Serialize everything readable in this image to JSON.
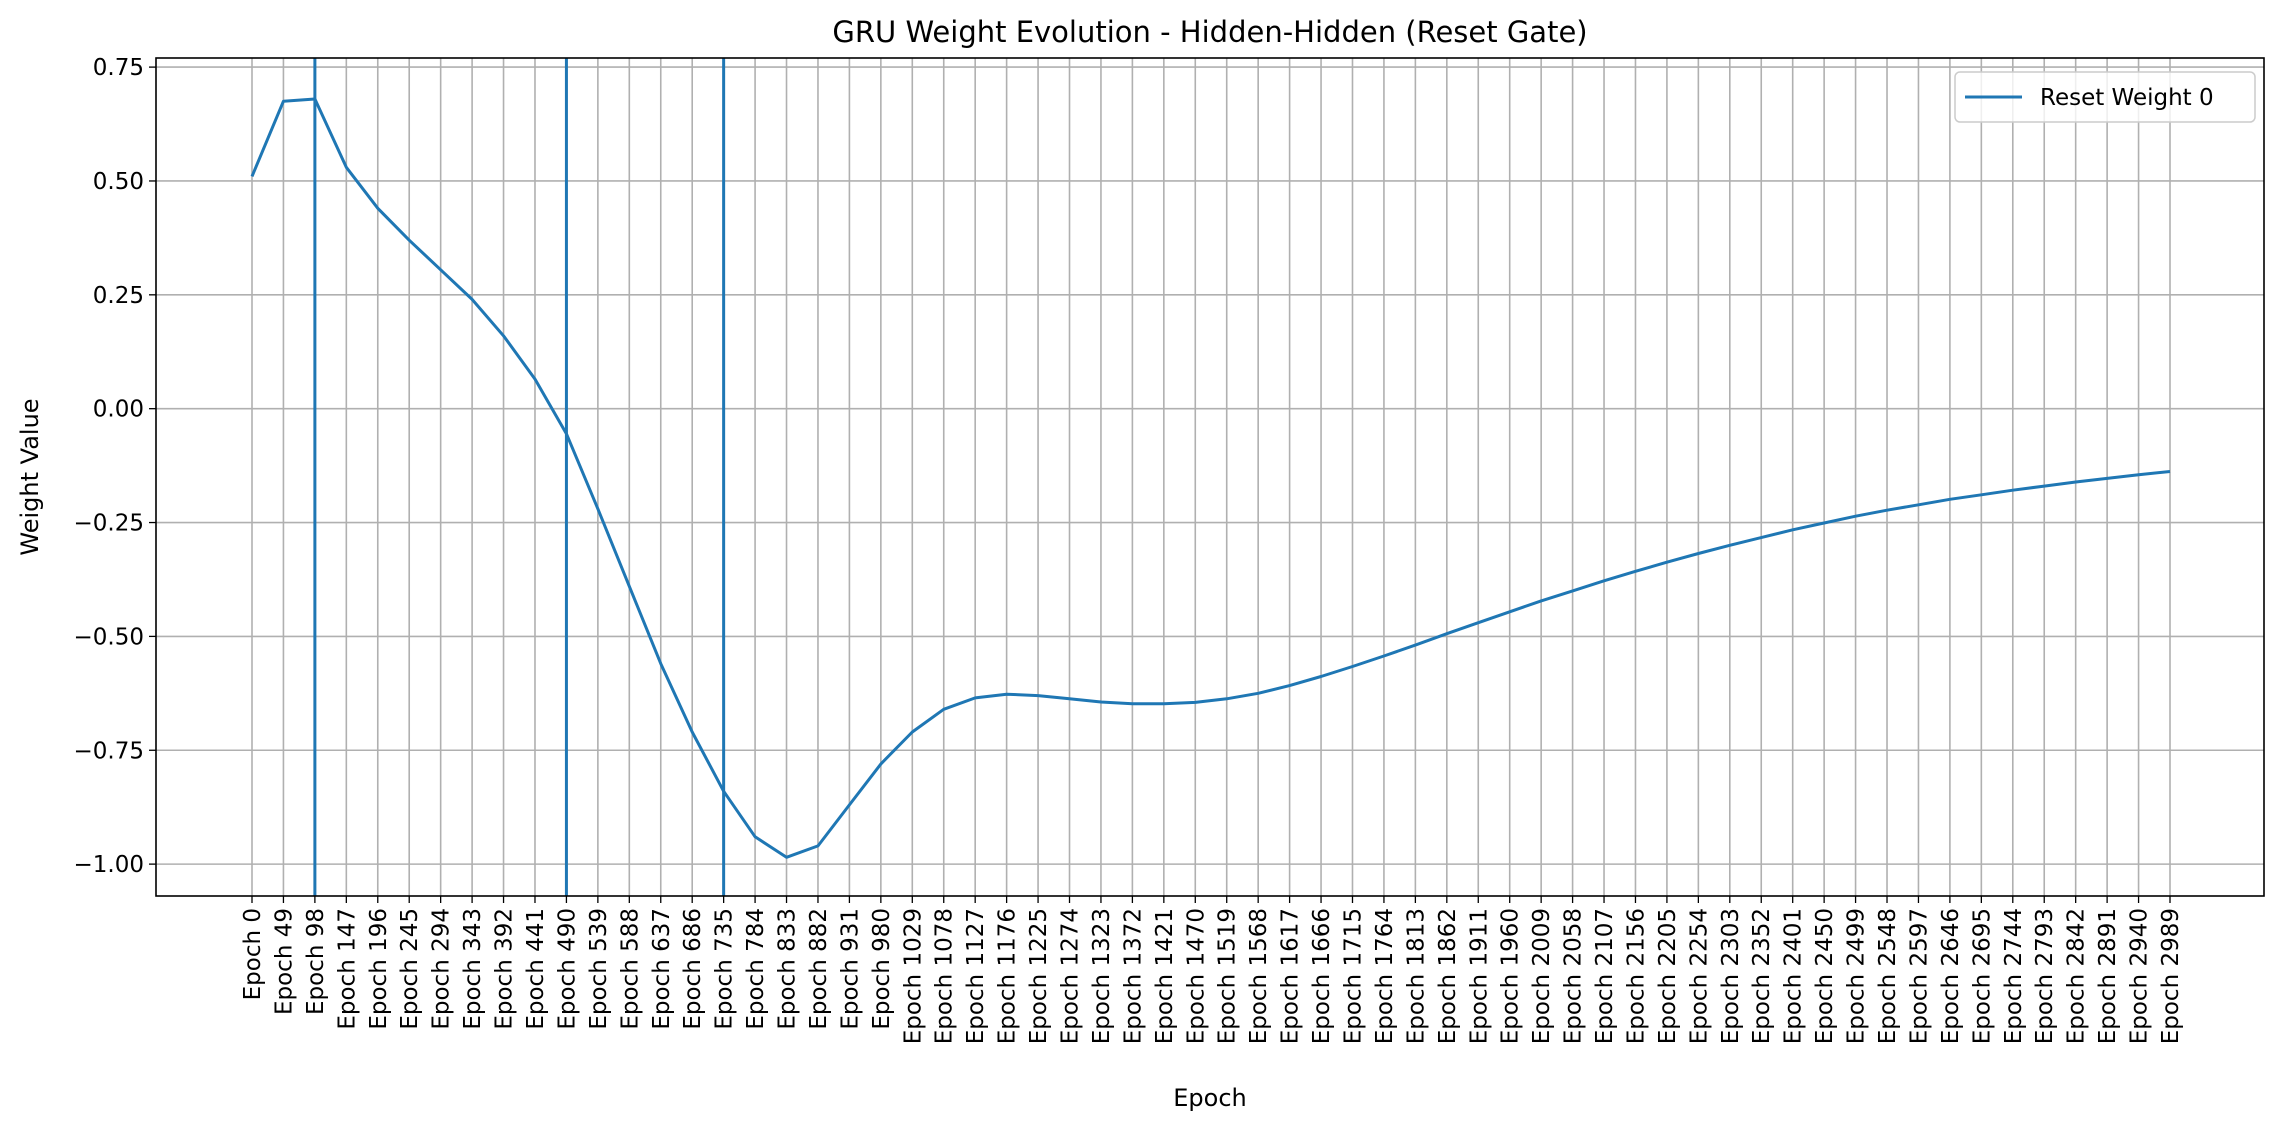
{
  "chart_data": {
    "type": "line",
    "title": "GRU Weight Evolution - Hidden-Hidden (Reset Gate)",
    "xlabel": "Epoch",
    "ylabel": "Weight Value",
    "categories": [
      "Epoch 0",
      "Epoch 49",
      "Epoch 98",
      "Epoch 147",
      "Epoch 196",
      "Epoch 245",
      "Epoch 294",
      "Epoch 343",
      "Epoch 392",
      "Epoch 441",
      "Epoch 490",
      "Epoch 539",
      "Epoch 588",
      "Epoch 637",
      "Epoch 686",
      "Epoch 735",
      "Epoch 784",
      "Epoch 833",
      "Epoch 882",
      "Epoch 931",
      "Epoch 980",
      "Epoch 1029",
      "Epoch 1078",
      "Epoch 1127",
      "Epoch 1176",
      "Epoch 1225",
      "Epoch 1274",
      "Epoch 1323",
      "Epoch 1372",
      "Epoch 1421",
      "Epoch 1470",
      "Epoch 1519",
      "Epoch 1568",
      "Epoch 1617",
      "Epoch 1666",
      "Epoch 1715",
      "Epoch 1764",
      "Epoch 1813",
      "Epoch 1862",
      "Epoch 1911",
      "Epoch 1960",
      "Epoch 2009",
      "Epoch 2058",
      "Epoch 2107",
      "Epoch 2156",
      "Epoch 2205",
      "Epoch 2254",
      "Epoch 2303",
      "Epoch 2352",
      "Epoch 2401",
      "Epoch 2450",
      "Epoch 2499",
      "Epoch 2548",
      "Epoch 2597",
      "Epoch 2646",
      "Epoch 2695",
      "Epoch 2744",
      "Epoch 2793",
      "Epoch 2842",
      "Epoch 2891",
      "Epoch 2940",
      "Epoch 2989"
    ],
    "series": [
      {
        "name": "Reset Weight 0",
        "color": "#1f77b4",
        "values": [
          0.51,
          0.675,
          0.68,
          0.53,
          0.44,
          0.37,
          0.305,
          0.24,
          0.16,
          0.065,
          -0.055,
          -0.22,
          -0.39,
          -0.56,
          -0.71,
          -0.84,
          -0.94,
          -0.985,
          -0.96,
          -0.87,
          -0.78,
          -0.71,
          -0.66,
          -0.635,
          -0.627,
          -0.63,
          -0.637,
          -0.644,
          -0.648,
          -0.648,
          -0.645,
          -0.637,
          -0.625,
          -0.608,
          -0.588,
          -0.566,
          -0.543,
          -0.519,
          -0.494,
          -0.47,
          -0.446,
          -0.422,
          -0.4,
          -0.378,
          -0.357,
          -0.337,
          -0.318,
          -0.3,
          -0.283,
          -0.266,
          -0.251,
          -0.236,
          -0.223,
          -0.211,
          -0.199,
          -0.189,
          -0.179,
          -0.17,
          -0.161,
          -0.153,
          -0.145,
          -0.138
        ]
      }
    ],
    "vlines": [
      "Epoch 98",
      "Epoch 490",
      "Epoch 735"
    ],
    "yticks": [
      0.75,
      0.5,
      0.25,
      0.0,
      -0.25,
      -0.5,
      -0.75,
      -1.0
    ],
    "ytick_labels": [
      "0.75",
      "0.50",
      "0.25",
      "0.00",
      "−0.25",
      "−0.50",
      "−0.75",
      "−1.00"
    ],
    "ylim": [
      -1.07,
      0.77
    ],
    "grid": true,
    "legend": "top-right"
  }
}
